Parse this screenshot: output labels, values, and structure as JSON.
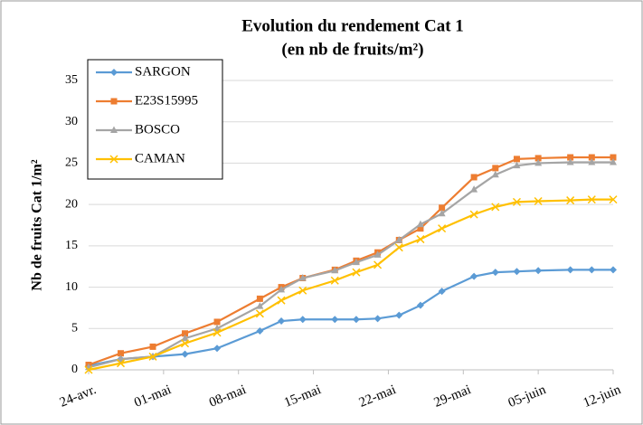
{
  "chart_data": {
    "type": "line",
    "title": "Evolution du rendement Cat 1",
    "subtitle": "(en nb de fruits/m²)",
    "y_label": "Nb de fruits Cat 1/m²",
    "x": [
      0,
      3,
      6,
      9,
      12,
      16,
      18,
      20,
      23,
      25,
      27,
      29,
      31,
      33,
      36,
      38,
      40,
      42,
      45,
      47,
      49
    ],
    "xlim": [
      0,
      49
    ],
    "xticks": [
      {
        "value": 0,
        "label": "24-avr."
      },
      {
        "value": 7,
        "label": "01-mai"
      },
      {
        "value": 14,
        "label": "08-mai"
      },
      {
        "value": 21,
        "label": "15-mai"
      },
      {
        "value": 28,
        "label": "22-mai"
      },
      {
        "value": 35,
        "label": "29-mai"
      },
      {
        "value": 42,
        "label": "05-juin"
      },
      {
        "value": 49,
        "label": "12-juin"
      }
    ],
    "ylim": [
      0,
      35
    ],
    "yticks": [
      0,
      5,
      10,
      15,
      20,
      25,
      30,
      35
    ],
    "grid": true,
    "legend": "top-left",
    "series": [
      {
        "name": "SARGON",
        "color": "#5b9bd5",
        "marker": "diamond",
        "values": [
          0.5,
          1.3,
          1.6,
          1.9,
          2.6,
          4.7,
          5.9,
          6.1,
          6.1,
          6.1,
          6.2,
          6.6,
          7.8,
          9.5,
          11.3,
          11.8,
          11.9,
          12.0,
          12.1,
          12.1,
          12.1
        ]
      },
      {
        "name": "E23S15995",
        "color": "#ed7d31",
        "marker": "square",
        "values": [
          0.6,
          2.0,
          2.8,
          4.4,
          5.8,
          8.6,
          10.0,
          11.1,
          12.1,
          13.2,
          14.2,
          15.7,
          17.1,
          19.6,
          23.3,
          24.4,
          25.5,
          25.6,
          25.7,
          25.7,
          25.7
        ]
      },
      {
        "name": "BOSCO",
        "color": "#a5a5a5",
        "marker": "triangle",
        "values": [
          0.3,
          1.3,
          1.6,
          3.8,
          5.0,
          7.7,
          9.7,
          11.1,
          12.0,
          13.0,
          13.9,
          15.7,
          17.6,
          18.9,
          21.8,
          23.6,
          24.7,
          25.0,
          25.1,
          25.1,
          25.1
        ]
      },
      {
        "name": "CAMAN",
        "color": "#ffc000",
        "marker": "x",
        "values": [
          0.0,
          0.8,
          1.6,
          3.2,
          4.5,
          6.8,
          8.4,
          9.6,
          10.8,
          11.8,
          12.7,
          14.8,
          15.8,
          17.1,
          18.8,
          19.7,
          20.3,
          20.4,
          20.5,
          20.6,
          20.6
        ]
      }
    ]
  }
}
